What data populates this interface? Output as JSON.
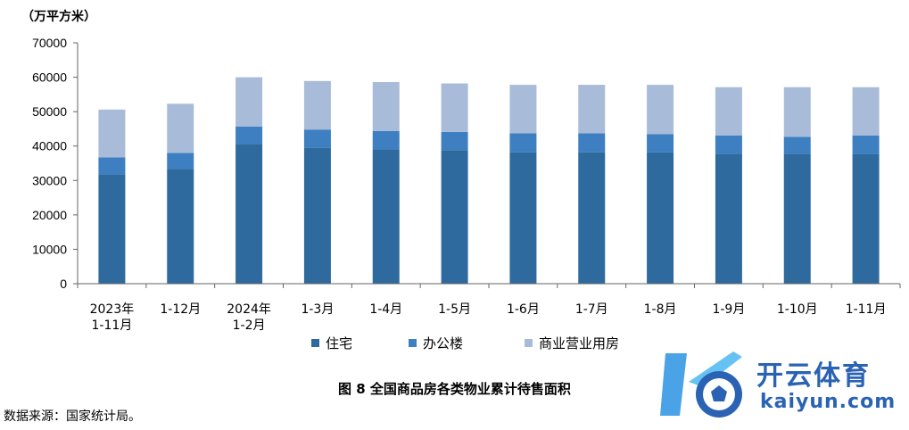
{
  "chart_data": {
    "type": "bar",
    "stacked": true,
    "unit_label": "（万平方米）",
    "categories": [
      [
        "2023年",
        "1-11月"
      ],
      [
        "1-12月"
      ],
      [
        "2024年",
        "1-2月"
      ],
      [
        "1-3月"
      ],
      [
        "1-4月"
      ],
      [
        "1-5月"
      ],
      [
        "1-6月"
      ],
      [
        "1-7月"
      ],
      [
        "1-8月"
      ],
      [
        "1-9月"
      ],
      [
        "1-10月"
      ],
      [
        "1-11月"
      ]
    ],
    "series": [
      {
        "name": "住宅",
        "color": "#2e6a9e",
        "values": [
          31800,
          33300,
          40600,
          39500,
          39000,
          38800,
          38200,
          38200,
          38200,
          37700,
          37700,
          37600
        ]
      },
      {
        "name": "办公楼",
        "color": "#3d7fc0",
        "values": [
          4900,
          4700,
          5100,
          5300,
          5400,
          5300,
          5500,
          5500,
          5300,
          5400,
          5000,
          5500
        ]
      },
      {
        "name": "商业营业用房",
        "color": "#a8bcd9",
        "values": [
          13900,
          14300,
          14300,
          14100,
          14200,
          14100,
          14100,
          14100,
          14300,
          14000,
          14400,
          14000
        ]
      }
    ],
    "ylim": [
      0,
      70000
    ],
    "yticks": [
      0,
      10000,
      20000,
      30000,
      40000,
      50000,
      60000,
      70000
    ],
    "grid": false,
    "legend_position": "bottom",
    "caption": "图 8 全国商品房各类物业累计待售面积"
  },
  "source_note": "数据来源：国家统计局。",
  "watermark": {
    "title": "开云体育",
    "url": "kaiyun.com",
    "icon": "k-soccer-ball-logo"
  }
}
